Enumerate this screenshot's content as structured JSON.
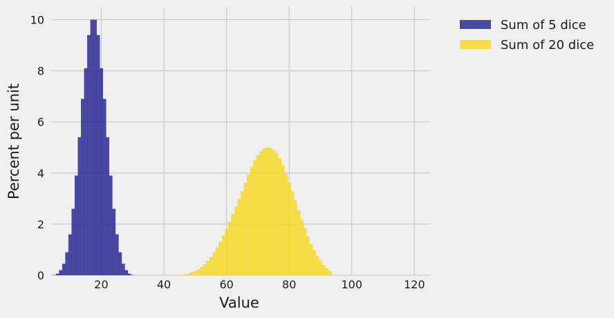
{
  "chart_data": {
    "type": "bar",
    "title": "",
    "xlabel": "Value",
    "ylabel": "Percent per unit",
    "xlim": [
      4,
      125
    ],
    "ylim": [
      0,
      10.5
    ],
    "xticks": [
      "20",
      "40",
      "60",
      "80",
      "100",
      "120"
    ],
    "yticks": [
      "0",
      "2",
      "4",
      "6",
      "8",
      "10"
    ],
    "grid": true,
    "legend_position": "outside-right",
    "bin_width": 1,
    "series": [
      {
        "name": "Sum of 5 dice",
        "color": "#2c2c95",
        "x": [
          5,
          6,
          7,
          8,
          9,
          10,
          11,
          12,
          13,
          14,
          15,
          16,
          17,
          18,
          19,
          20,
          21,
          22,
          23,
          24,
          25,
          26,
          27,
          28,
          29,
          30
        ],
        "values": [
          0.01,
          0.06,
          0.2,
          0.45,
          0.9,
          1.6,
          2.6,
          3.9,
          5.4,
          6.9,
          8.1,
          9.4,
          10.0,
          10.0,
          9.4,
          8.1,
          6.9,
          5.4,
          3.9,
          2.6,
          1.6,
          0.9,
          0.45,
          0.2,
          0.06,
          0.01
        ]
      },
      {
        "name": "Sum of 20 dice",
        "color": "#f8d81e",
        "x": [
          46,
          47,
          48,
          49,
          50,
          51,
          52,
          53,
          54,
          55,
          56,
          57,
          58,
          59,
          60,
          61,
          62,
          63,
          64,
          65,
          66,
          67,
          68,
          69,
          70,
          71,
          72,
          73,
          74,
          75,
          76,
          77,
          78,
          79,
          80,
          81,
          82,
          83,
          84,
          85,
          86,
          87,
          88,
          89,
          90,
          91,
          92,
          93
        ],
        "values": [
          0.02,
          0.04,
          0.07,
          0.12,
          0.17,
          0.24,
          0.32,
          0.43,
          0.56,
          0.71,
          0.89,
          1.09,
          1.31,
          1.56,
          1.82,
          2.1,
          2.39,
          2.69,
          2.98,
          3.28,
          3.62,
          3.94,
          4.24,
          4.5,
          4.7,
          4.85,
          4.95,
          5.0,
          4.98,
          4.9,
          4.78,
          4.58,
          4.3,
          3.99,
          3.63,
          3.28,
          2.92,
          2.55,
          2.18,
          1.84,
          1.52,
          1.23,
          0.98,
          0.75,
          0.56,
          0.4,
          0.27,
          0.17
        ]
      }
    ]
  }
}
